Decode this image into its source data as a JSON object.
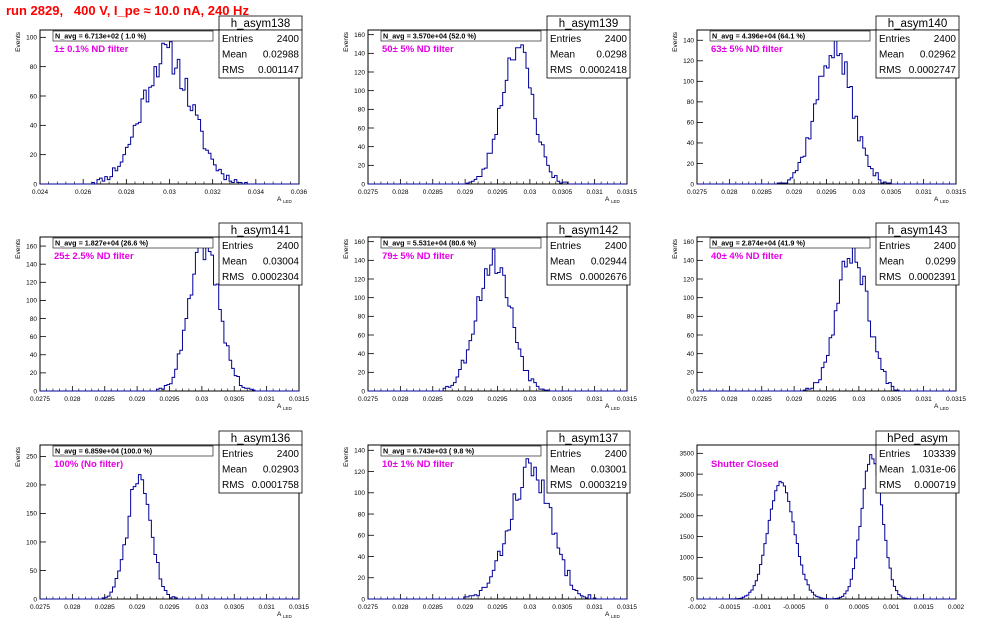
{
  "page": {
    "title": "run 2829,   400 V, I_pe ≈ 10.0 nA, 240 Hz"
  },
  "chart_data": [
    {
      "type": "histogram",
      "name": "h_asym138",
      "stats": [
        [
          "Entries",
          "2400"
        ],
        [
          "Mean",
          "0.02988"
        ],
        [
          "RMS",
          "0.001147"
        ]
      ],
      "navg": "N_avg = 6.713e+02 ( 1.0 %)",
      "filter": "1± 0.1% ND filter",
      "xlabel": "A_LED",
      "ylabel": "Events",
      "xlim": [
        0.024,
        0.036
      ],
      "ylim": [
        0,
        105
      ],
      "xticks": [
        "0.024",
        "0.026",
        "0.028",
        "0.03",
        "0.032",
        "0.034",
        "0.036"
      ],
      "yticks": [
        "0",
        "20",
        "40",
        "60",
        "80",
        "100"
      ],
      "shape": {
        "kind": "gauss",
        "mean": 0.02988,
        "sigma": 0.00115,
        "peak": 88,
        "nbins": 100,
        "seed": 11
      }
    },
    {
      "type": "histogram",
      "name": "h_asym139",
      "stats": [
        [
          "Entries",
          "2400"
        ],
        [
          "Mean",
          "0.0298"
        ],
        [
          "RMS",
          "0.0002418"
        ]
      ],
      "navg": "N_avg = 3.570e+04 (52.0 %)",
      "filter": "50± 5% ND filter",
      "xlabel": "A_LED",
      "ylabel": "Events",
      "xlim": [
        0.0275,
        0.0315
      ],
      "ylim": [
        0,
        165
      ],
      "xticks": [
        "0.0275",
        "0.028",
        "0.0285",
        "0.029",
        "0.0295",
        "0.03",
        "0.0305",
        "0.031",
        "0.0315"
      ],
      "yticks": [
        "0",
        "20",
        "40",
        "60",
        "80",
        "100",
        "120",
        "140",
        "160"
      ],
      "shape": {
        "kind": "gauss",
        "mean": 0.0298,
        "sigma": 0.00024,
        "peak": 148,
        "nbins": 100,
        "seed": 23
      }
    },
    {
      "type": "histogram",
      "name": "h_asym140",
      "stats": [
        [
          "Entries",
          "2400"
        ],
        [
          "Mean",
          "0.02962"
        ],
        [
          "RMS",
          "0.0002747"
        ]
      ],
      "navg": "N_avg = 4.396e+04 (64.1 %)",
      "filter": "63± 5% ND filter",
      "xlabel": "A_LED",
      "ylabel": "Events",
      "xlim": [
        0.0275,
        0.0315
      ],
      "ylim": [
        0,
        150
      ],
      "xticks": [
        "0.0275",
        "0.028",
        "0.0285",
        "0.029",
        "0.0295",
        "0.03",
        "0.0305",
        "0.031",
        "0.0315"
      ],
      "yticks": [
        "0",
        "20",
        "40",
        "60",
        "80",
        "100",
        "120",
        "140"
      ],
      "shape": {
        "kind": "gauss",
        "mean": 0.02962,
        "sigma": 0.000275,
        "peak": 132,
        "nbins": 100,
        "seed": 37
      }
    },
    {
      "type": "histogram",
      "name": "h_asym141",
      "stats": [
        [
          "Entries",
          "2400"
        ],
        [
          "Mean",
          "0.03004"
        ],
        [
          "RMS",
          "0.0002304"
        ]
      ],
      "navg": "N_avg = 1.827e+04 (26.6 %)",
      "filter": "25± 2.5% ND filter",
      "xlabel": "A_LED",
      "ylabel": "Events",
      "xlim": [
        0.0275,
        0.0315
      ],
      "ylim": [
        0,
        170
      ],
      "xticks": [
        "0.0275",
        "0.028",
        "0.0285",
        "0.029",
        "0.0295",
        "0.03",
        "0.0305",
        "0.031",
        "0.0315"
      ],
      "yticks": [
        "0",
        "20",
        "40",
        "60",
        "80",
        "100",
        "120",
        "140",
        "160"
      ],
      "shape": {
        "kind": "gauss",
        "mean": 0.03004,
        "sigma": 0.00023,
        "peak": 160,
        "nbins": 100,
        "seed": 41
      }
    },
    {
      "type": "histogram",
      "name": "h_asym142",
      "stats": [
        [
          "Entries",
          "2400"
        ],
        [
          "Mean",
          "0.02944"
        ],
        [
          "RMS",
          "0.0002676"
        ]
      ],
      "navg": "N_avg = 5.531e+04 (80.6 %)",
      "filter": "79± 5% ND filter",
      "xlabel": "A_LED",
      "ylabel": "Events",
      "xlim": [
        0.0275,
        0.0315
      ],
      "ylim": [
        0,
        165
      ],
      "xticks": [
        "0.0275",
        "0.028",
        "0.0285",
        "0.029",
        "0.0295",
        "0.03",
        "0.0305",
        "0.031",
        "0.0315"
      ],
      "yticks": [
        "0",
        "20",
        "40",
        "60",
        "80",
        "100",
        "120",
        "140",
        "160"
      ],
      "shape": {
        "kind": "gauss",
        "mean": 0.02944,
        "sigma": 0.000268,
        "peak": 140,
        "nbins": 100,
        "seed": 53
      }
    },
    {
      "type": "histogram",
      "name": "h_asym143",
      "stats": [
        [
          "Entries",
          "2400"
        ],
        [
          "Mean",
          "0.0299"
        ],
        [
          "RMS",
          "0.0002391"
        ]
      ],
      "navg": "N_avg = 2.874e+04 (41.9 %)",
      "filter": "40± 4% ND filter",
      "xlabel": "A_LED",
      "ylabel": "Events",
      "xlim": [
        0.0275,
        0.0315
      ],
      "ylim": [
        0,
        165
      ],
      "xticks": [
        "0.0275",
        "0.028",
        "0.0285",
        "0.029",
        "0.0295",
        "0.03",
        "0.0305",
        "0.031",
        "0.0315"
      ],
      "yticks": [
        "0",
        "20",
        "40",
        "60",
        "80",
        "100",
        "120",
        "140",
        "160"
      ],
      "shape": {
        "kind": "gauss",
        "mean": 0.0299,
        "sigma": 0.000239,
        "peak": 150,
        "nbins": 100,
        "seed": 67
      }
    },
    {
      "type": "histogram",
      "name": "h_asym136",
      "stats": [
        [
          "Entries",
          "2400"
        ],
        [
          "Mean",
          "0.02903"
        ],
        [
          "RMS",
          "0.0001758"
        ]
      ],
      "navg": "N_avg = 6.859e+04 (100.0 %)",
      "filter": "100% (No filter)",
      "xlabel": "A_LED",
      "ylabel": "Events",
      "xlim": [
        0.0275,
        0.0315
      ],
      "ylim": [
        0,
        270
      ],
      "xticks": [
        "0.0275",
        "0.028",
        "0.0285",
        "0.029",
        "0.0295",
        "0.03",
        "0.0305",
        "0.031",
        "0.0315"
      ],
      "yticks": [
        "0",
        "50",
        "100",
        "150",
        "200",
        "250"
      ],
      "shape": {
        "kind": "gauss",
        "mean": 0.02903,
        "sigma": 0.000176,
        "peak": 215,
        "nbins": 100,
        "seed": 71
      }
    },
    {
      "type": "histogram",
      "name": "h_asym137",
      "stats": [
        [
          "Entries",
          "2400"
        ],
        [
          "Mean",
          "0.03001"
        ],
        [
          "RMS",
          "0.0003219"
        ]
      ],
      "navg": "N_avg = 6.743e+03 ( 9.8 %)",
      "filter": "10± 1% ND filter",
      "xlabel": "A_LED",
      "ylabel": "Events",
      "xlim": [
        0.0275,
        0.0315
      ],
      "ylim": [
        0,
        145
      ],
      "xticks": [
        "0.0275",
        "0.028",
        "0.0285",
        "0.029",
        "0.0295",
        "0.03",
        "0.0305",
        "0.031",
        "0.0315"
      ],
      "yticks": [
        "0",
        "20",
        "40",
        "60",
        "80",
        "100",
        "120",
        "140"
      ],
      "shape": {
        "kind": "gauss",
        "mean": 0.03001,
        "sigma": 0.00032,
        "peak": 122,
        "nbins": 100,
        "seed": 83
      }
    },
    {
      "type": "histogram",
      "name": "hPed_asym",
      "stats": [
        [
          "Entries",
          "103339"
        ],
        [
          "Mean",
          "1.031e-06"
        ],
        [
          "RMS",
          "0.000719"
        ]
      ],
      "navg": "",
      "filter": "Shutter Closed",
      "xlabel": "",
      "ylabel": "",
      "xlim": [
        -0.002,
        0.002
      ],
      "ylim": [
        0,
        3700
      ],
      "xticks": [
        "-0.002",
        "-0.0015",
        "-0.001",
        "-0.0005",
        "0",
        "0.0005",
        "0.001",
        "0.0015",
        "0.002"
      ],
      "yticks": [
        "0",
        "500",
        "1000",
        "1500",
        "2000",
        "2500",
        "3000",
        "3500"
      ],
      "shape": {
        "kind": "double",
        "means": [
          -0.0007,
          0.0007
        ],
        "sigmas": [
          0.0002,
          0.00016
        ],
        "peaks": [
          2850,
          3450
        ],
        "nbins": 120,
        "seed": 97
      }
    }
  ]
}
